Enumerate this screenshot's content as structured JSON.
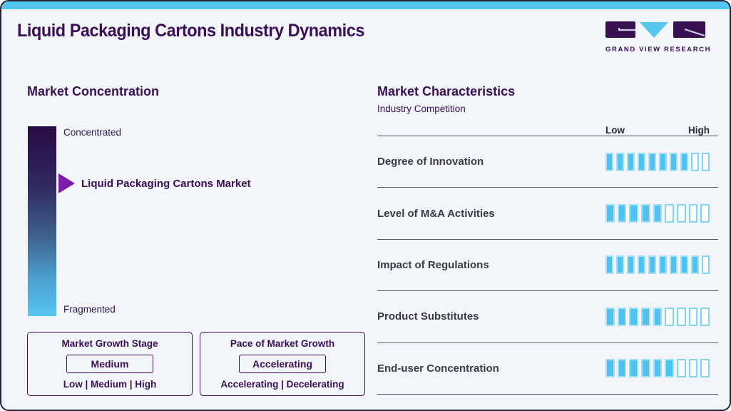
{
  "header": {
    "title": "Liquid Packaging Cartons Industry Dynamics",
    "logo_text": "GRAND VIEW RESEARCH"
  },
  "market_concentration": {
    "heading": "Market Concentration",
    "scale_top": "Concentrated",
    "scale_bottom": "Fragmented",
    "marker_label": "Liquid Packaging Cartons Market",
    "growth_stage": {
      "title": "Market Growth Stage",
      "value": "Medium",
      "options": "Low | Medium | High"
    },
    "growth_pace": {
      "title": "Pace of Market Growth",
      "value": "Accelerating",
      "options": "Accelerating | Decelerating"
    }
  },
  "market_characteristics": {
    "heading": "Market Characteristics",
    "subheading": "Industry Competition",
    "scale_left": "Low",
    "scale_right": "High",
    "rows": [
      {
        "label": "Degree of Innovation",
        "filled": 8,
        "total": 10
      },
      {
        "label": "Level of M&A Activities",
        "filled": 5,
        "total": 9
      },
      {
        "label": "Impact of Regulations",
        "filled": 9,
        "total": 10
      },
      {
        "label": "Product Substitutes",
        "filled": 5,
        "total": 9
      },
      {
        "label": "End-user Concentration",
        "filled": 6,
        "total": 9
      }
    ]
  },
  "colors": {
    "accent_cyan": "#53C6F0",
    "brand_purple": "#3A0F55",
    "marker_purple": "#7A1CA8",
    "gradient_top": "#290B45",
    "gradient_bottom": "#55C6F2",
    "bar_filled": "#4FC2EF",
    "bar_empty_border": "#83D4F3",
    "divider": "#56525F",
    "background": "#F2F6FA"
  },
  "chart_data": [
    {
      "type": "bar",
      "title": "Market Concentration",
      "subtitle": "vertical gradient scale from Fragmented (bottom) to Concentrated (top)",
      "scale": [
        "Fragmented",
        "Concentrated"
      ],
      "annotations": [
        {
          "label": "Liquid Packaging Cartons Market",
          "position_pct_from_top": 30
        }
      ],
      "callouts": {
        "market_growth_stage": {
          "value": "Medium",
          "options": [
            "Low",
            "Medium",
            "High"
          ]
        },
        "pace_of_market_growth": {
          "value": "Accelerating",
          "options": [
            "Accelerating",
            "Decelerating"
          ]
        }
      }
    },
    {
      "type": "bar",
      "title": "Market Characteristics — Industry Competition",
      "xlabel": "",
      "ylabel": "Rating (Low to High)",
      "scale": [
        "Low",
        "High"
      ],
      "categories": [
        "Degree of Innovation",
        "Level of M&A Activities",
        "Impact of Regulations",
        "Product Substitutes",
        "End-user Concentration"
      ],
      "values": [
        8,
        5,
        9,
        5,
        6
      ],
      "segment_totals": [
        10,
        9,
        10,
        9,
        9
      ],
      "legend_position": "none",
      "grid": false
    }
  ]
}
